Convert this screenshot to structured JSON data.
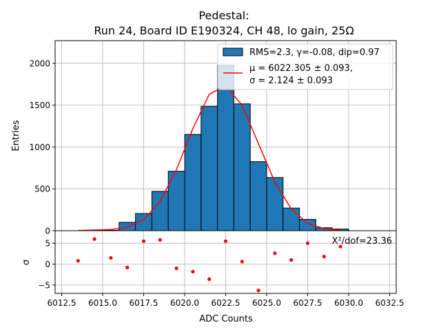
{
  "chart_data": {
    "type": "bar",
    "title_line1": "Pedestal:",
    "title_line2": "Run 24, Board ID E190324, CH 48, lo gain, 25Ω",
    "xlabel": "ADC Counts",
    "ylabel_top": "Entries",
    "ylabel_bottom": "σ",
    "xlim": [
      6012.1,
      6032.9
    ],
    "ylim_top": [
      0,
      2270
    ],
    "ylim_bottom": [
      -7,
      8
    ],
    "x_ticks": [
      6012.5,
      6015.0,
      6017.5,
      6020.0,
      6022.5,
      6025.0,
      6027.5,
      6030.0,
      6032.5
    ],
    "x_tick_labels": [
      "6012.5",
      "6015.0",
      "6017.5",
      "6020.0",
      "6022.5",
      "6025.0",
      "6027.5",
      "6030.0",
      "6032.5"
    ],
    "y_ticks_top": [
      0,
      500,
      1000,
      1500,
      2000
    ],
    "y_tick_labels_top": [
      "0",
      "500",
      "1000",
      "1500",
      "2000"
    ],
    "y_ticks_bottom": [
      -5,
      0,
      5
    ],
    "y_tick_labels_bottom": [
      "−5",
      "0",
      "5"
    ],
    "grid": true,
    "legend_placement": "top-right",
    "bin_edges": [
      6013,
      6014,
      6015,
      6016,
      6017,
      6018,
      6019,
      6020,
      6021,
      6022,
      6023,
      6024,
      6025,
      6026,
      6027,
      6028,
      6029,
      6030
    ],
    "counts": [
      0,
      3,
      5,
      100,
      205,
      470,
      710,
      1150,
      1485,
      1975,
      1515,
      825,
      635,
      270,
      135,
      35,
      20
    ],
    "fit_x": [
      6013.5,
      6014.5,
      6015.5,
      6016.5,
      6017.5,
      6018.5,
      6019.5,
      6020.5,
      6021.5,
      6022.5,
      6023.5,
      6024.5,
      6025.5,
      6026.5,
      6027.5,
      6028.5,
      6029.5
    ],
    "fit_y": [
      2,
      8,
      15,
      40,
      130,
      350,
      730,
      1220,
      1630,
      1730,
      1500,
      1040,
      580,
      260,
      90,
      25,
      6
    ],
    "residual_x": [
      6013.5,
      6014.5,
      6015.5,
      6016.5,
      6017.5,
      6018.5,
      6019.5,
      6020.5,
      6021.5,
      6022.5,
      6023.5,
      6024.5,
      6025.5,
      6026.5,
      6027.5,
      6028.5,
      6029.5
    ],
    "residual_y": [
      0.8,
      6.0,
      1.5,
      -0.8,
      5.5,
      5.8,
      -1.0,
      -1.8,
      -3.6,
      5.5,
      0.6,
      -6.3,
      2.6,
      1.0,
      5.0,
      1.8,
      4.2
    ],
    "chi2_label": "X²/dof=23.36",
    "legend": [
      {
        "label": "RMS=2.3, γ=-0.08, dip=0.97",
        "kind": "patch"
      },
      {
        "label_line1": "μ = 6022.305 ± 0.093,",
        "label_line2": "σ = 2.124 ± 0.093",
        "kind": "line"
      }
    ],
    "colors": {
      "bar": "#1f77b4",
      "edge": "#000000",
      "fit": "#ff0000",
      "grid": "#b0b0b0"
    }
  }
}
